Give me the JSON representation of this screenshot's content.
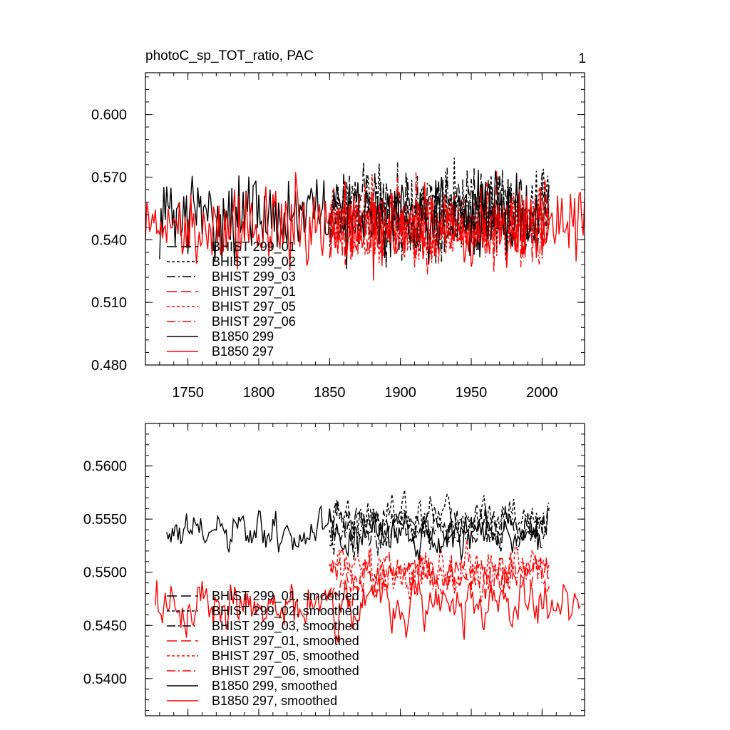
{
  "figure": {
    "panel_number": "1"
  },
  "chart_data": [
    {
      "type": "line",
      "title": "photoC_sp_TOT_ratio, PAC",
      "xlabel": "",
      "ylabel": "",
      "xlim": [
        1720,
        2030
      ],
      "ylim": [
        0.48,
        0.62
      ],
      "x_ticks": [
        1750,
        1800,
        1850,
        1900,
        1950,
        2000
      ],
      "x_tick_labels": [
        "1750",
        "1800",
        "1850",
        "1900",
        "1950",
        "2000"
      ],
      "y_ticks": [
        0.48,
        0.51,
        0.54,
        0.57,
        0.6
      ],
      "y_tick_labels": [
        "0.480",
        "0.510",
        "0.540",
        "0.570",
        "0.600"
      ],
      "legend_position": "lower-left",
      "series": [
        {
          "name": "BHIST 299_01",
          "color": "#000000",
          "dash": "long-dash",
          "x_range": [
            1850,
            2005
          ],
          "mean": 0.553,
          "amplitude": 0.018,
          "seed": 11
        },
        {
          "name": "BHIST 299_02",
          "color": "#000000",
          "dash": "short-dash",
          "x_range": [
            1850,
            2005
          ],
          "mean": 0.554,
          "amplitude": 0.019,
          "seed": 12
        },
        {
          "name": "BHIST 299_03",
          "color": "#000000",
          "dash": "dash-dot",
          "x_range": [
            1850,
            2005
          ],
          "mean": 0.553,
          "amplitude": 0.018,
          "seed": 13
        },
        {
          "name": "BHIST 297_01",
          "color": "#ff0000",
          "dash": "long-dash",
          "x_range": [
            1850,
            2005
          ],
          "mean": 0.547,
          "amplitude": 0.017,
          "seed": 21
        },
        {
          "name": "BHIST 297_05",
          "color": "#ff0000",
          "dash": "short-dash",
          "x_range": [
            1850,
            2005
          ],
          "mean": 0.548,
          "amplitude": 0.017,
          "seed": 22
        },
        {
          "name": "BHIST 297_06",
          "color": "#ff0000",
          "dash": "dash-dot",
          "x_range": [
            1850,
            2005
          ],
          "mean": 0.547,
          "amplitude": 0.017,
          "seed": 23
        },
        {
          "name": "B1850 299",
          "color": "#000000",
          "dash": "solid",
          "x_range": [
            1730,
            2000
          ],
          "mean": 0.552,
          "amplitude": 0.018,
          "seed": 31
        },
        {
          "name": "B1850 297",
          "color": "#ff0000",
          "dash": "solid",
          "x_range": [
            1720,
            2030
          ],
          "mean": 0.546,
          "amplitude": 0.018,
          "seed": 32
        }
      ]
    },
    {
      "type": "line",
      "title": "",
      "xlabel": "",
      "ylabel": "",
      "xlim": [
        1720,
        2030
      ],
      "ylim": [
        0.5365,
        0.564
      ],
      "x_ticks": [
        1750,
        1800,
        1850,
        1900,
        1950,
        2000
      ],
      "x_tick_labels": [
        "",
        "",
        "",
        "",
        "",
        ""
      ],
      "y_ticks": [
        0.54,
        0.545,
        0.55,
        0.555,
        0.56
      ],
      "y_tick_labels": [
        "0.5400",
        "0.5450",
        "0.5500",
        "0.5550",
        "0.5600"
      ],
      "legend_position": "lower-left",
      "series": [
        {
          "name": "BHIST 299_01, smoothed",
          "color": "#000000",
          "dash": "long-dash",
          "x_range": [
            1850,
            2005
          ],
          "mean": 0.5545,
          "amplitude": 0.0035,
          "seed": 41
        },
        {
          "name": "BHIST 299_02, smoothed",
          "color": "#000000",
          "dash": "short-dash",
          "x_range": [
            1850,
            2005
          ],
          "mean": 0.555,
          "amplitude": 0.0035,
          "seed": 42
        },
        {
          "name": "BHIST 299_03, smoothed",
          "color": "#000000",
          "dash": "dash-dot",
          "x_range": [
            1850,
            2005
          ],
          "mean": 0.554,
          "amplitude": 0.0035,
          "seed": 43
        },
        {
          "name": "BHIST 297_01, smoothed",
          "color": "#ff0000",
          "dash": "long-dash",
          "x_range": [
            1850,
            2005
          ],
          "mean": 0.55,
          "amplitude": 0.0035,
          "seed": 51
        },
        {
          "name": "BHIST 297_05, smoothed",
          "color": "#ff0000",
          "dash": "short-dash",
          "x_range": [
            1850,
            2005
          ],
          "mean": 0.5505,
          "amplitude": 0.0035,
          "seed": 52
        },
        {
          "name": "BHIST 297_06, smoothed",
          "color": "#ff0000",
          "dash": "dash-dot",
          "x_range": [
            1850,
            2005
          ],
          "mean": 0.5495,
          "amplitude": 0.0035,
          "seed": 53
        },
        {
          "name": "B1850 299, smoothed",
          "color": "#000000",
          "dash": "solid",
          "x_range": [
            1735,
            2000
          ],
          "mean": 0.5535,
          "amplitude": 0.0035,
          "seed": 61
        },
        {
          "name": "B1850 297, smoothed",
          "color": "#ff0000",
          "dash": "solid",
          "x_range": [
            1727,
            2027
          ],
          "mean": 0.547,
          "amplitude": 0.004,
          "seed": 62
        }
      ]
    }
  ]
}
